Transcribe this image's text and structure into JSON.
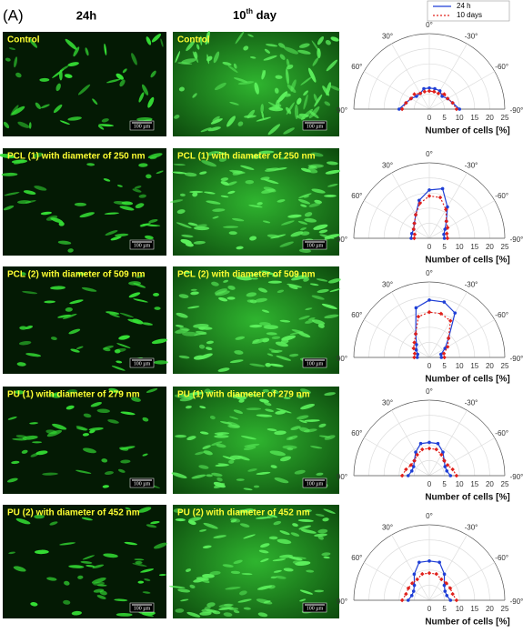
{
  "panel_label": "(A)",
  "column_headers": [
    "24h",
    {
      "main": "10",
      "sup": "th",
      "rest": " day"
    }
  ],
  "rows": [
    {
      "images": [
        {
          "label": "Control",
          "scale_bar": "100 µm"
        },
        {
          "label": "Control",
          "scale_bar": "100 µm"
        }
      ]
    },
    {
      "images": [
        {
          "label": "PCL (1) with diameter of 250 nm",
          "scale_bar": "100 µm"
        },
        {
          "label": "PCL (1) with diameter of 250 nm",
          "scale_bar": "100 µm"
        }
      ]
    },
    {
      "images": [
        {
          "label": "PCL (2) with diameter of 509 nm",
          "scale_bar": "100 µm"
        },
        {
          "label": "PCL (2) with diameter of 509 nm",
          "scale_bar": "100 µm"
        }
      ]
    },
    {
      "images": [
        {
          "label": "PU (1) with diameter of 279 nm",
          "scale_bar": "100 µm"
        },
        {
          "label": "PU (1) with diameter of 279 nm",
          "scale_bar": "100 µm"
        }
      ]
    },
    {
      "images": [
        {
          "label": "PU (2) with diameter of 452 nm",
          "scale_bar": "100 µm"
        },
        {
          "label": "PU (2) with diameter of 452 nm",
          "scale_bar": "100 µm"
        }
      ]
    }
  ],
  "chart_data": [
    {
      "type": "polar",
      "xlabel": "Number of cells [%]",
      "rlim": [
        0,
        25
      ],
      "rticks": [
        0,
        5,
        10,
        15,
        20,
        25
      ],
      "thetaticks": [
        {
          "value": 0,
          "label": "0°"
        },
        {
          "value": 30,
          "label": "30°"
        },
        {
          "value": 60,
          "label": "60°"
        },
        {
          "value": 90,
          "label": "90°"
        },
        {
          "value": -30,
          "label": "-30°"
        },
        {
          "value": -60,
          "label": "-60°"
        },
        {
          "value": -90,
          "label": "-90°"
        }
      ],
      "theta": [
        90,
        75,
        60,
        45,
        30,
        15,
        0,
        -15,
        -30,
        -45,
        -60,
        -75,
        -90
      ],
      "series": [
        {
          "name": "24 h",
          "color": "#1f3fd6",
          "values": [
            10,
            8,
            7,
            6,
            6,
            7,
            7,
            7,
            7,
            6,
            7,
            8,
            10
          ]
        },
        {
          "name": "10 days",
          "color": "#e0201b",
          "values": [
            9,
            8,
            7,
            7,
            6,
            6,
            6,
            6,
            6,
            7,
            7,
            8,
            9
          ]
        }
      ]
    },
    {
      "type": "polar",
      "xlabel": "Number of cells [%]",
      "rlim": [
        0,
        25
      ],
      "rticks": [
        0,
        5,
        10,
        15,
        20,
        25
      ],
      "thetaticks": [
        {
          "value": 0,
          "label": "0°"
        },
        {
          "value": 30,
          "label": "30°"
        },
        {
          "value": 60,
          "label": "60°"
        },
        {
          "value": 90,
          "label": "90°"
        },
        {
          "value": -30,
          "label": "-30°"
        },
        {
          "value": -60,
          "label": "-60°"
        },
        {
          "value": -90,
          "label": "-90°"
        }
      ],
      "theta": [
        90,
        75,
        60,
        45,
        30,
        15,
        0,
        -15,
        -30,
        -45,
        -60,
        -75,
        -90
      ],
      "series": [
        {
          "color": "#1f3fd6",
          "values": [
            6,
            6,
            6,
            7,
            9,
            13,
            16,
            17,
            12,
            8,
            6,
            5,
            5
          ]
        },
        {
          "color": "#e0201b",
          "values": [
            5,
            5,
            6,
            7,
            9,
            12,
            14,
            14,
            11,
            8,
            7,
            6,
            6
          ]
        }
      ]
    },
    {
      "type": "polar",
      "xlabel": "Number of cells [%]",
      "rlim": [
        0,
        25
      ],
      "rticks": [
        0,
        5,
        10,
        15,
        20,
        25
      ],
      "thetaticks": [
        {
          "value": 0,
          "label": "0°"
        },
        {
          "value": 30,
          "label": "30°"
        },
        {
          "value": 60,
          "label": "60°"
        },
        {
          "value": 90,
          "label": "90°"
        },
        {
          "value": -30,
          "label": "-30°"
        },
        {
          "value": -60,
          "label": "-60°"
        },
        {
          "value": -90,
          "label": "-90°"
        }
      ],
      "theta": [
        90,
        75,
        60,
        45,
        30,
        15,
        0,
        -15,
        -30,
        -45,
        -60,
        -75,
        -90
      ],
      "series": [
        {
          "color": "#1f3fd6",
          "values": [
            4,
            4,
            5,
            6,
            9,
            17,
            19,
            19,
            17,
            9,
            6,
            4,
            4
          ]
        },
        {
          "color": "#e0201b",
          "values": [
            5,
            5,
            6,
            7,
            9,
            14,
            15,
            15,
            14,
            9,
            7,
            5,
            5
          ]
        }
      ]
    },
    {
      "type": "polar",
      "xlabel": "Number of cells [%]",
      "rlim": [
        0,
        25
      ],
      "rticks": [
        0,
        5,
        10,
        15,
        20,
        25
      ],
      "thetaticks": [
        {
          "value": 0,
          "label": "0°"
        },
        {
          "value": 30,
          "label": "30°"
        },
        {
          "value": 60,
          "label": "60°"
        },
        {
          "value": 90,
          "label": "90°"
        },
        {
          "value": -30,
          "label": "-30°"
        },
        {
          "value": -60,
          "label": "-60°"
        },
        {
          "value": -90,
          "label": "-90°"
        }
      ],
      "theta": [
        90,
        75,
        60,
        45,
        30,
        15,
        0,
        -15,
        -30,
        -45,
        -60,
        -75,
        -90
      ],
      "series": [
        {
          "color": "#1f3fd6",
          "values": [
            7,
            6,
            6,
            7,
            9,
            11,
            11,
            11,
            9,
            7,
            6,
            6,
            7
          ]
        },
        {
          "color": "#e0201b",
          "values": [
            9,
            8,
            7,
            7,
            8,
            9,
            9,
            9,
            8,
            7,
            7,
            8,
            9
          ]
        }
      ]
    },
    {
      "type": "polar",
      "xlabel": "Number of cells [%]",
      "rlim": [
        0,
        25
      ],
      "rticks": [
        0,
        5,
        10,
        15,
        20,
        25
      ],
      "thetaticks": [
        {
          "value": 0,
          "label": "0°"
        },
        {
          "value": 30,
          "label": "30°"
        },
        {
          "value": 60,
          "label": "60°"
        },
        {
          "value": 90,
          "label": "90°"
        },
        {
          "value": -30,
          "label": "-30°"
        },
        {
          "value": -60,
          "label": "-60°"
        },
        {
          "value": -90,
          "label": "-90°"
        }
      ],
      "theta": [
        90,
        75,
        60,
        45,
        30,
        15,
        0,
        -15,
        -30,
        -45,
        -60,
        -75,
        -90
      ],
      "series": [
        {
          "color": "#1f3fd6",
          "values": [
            7,
            6,
            6,
            7,
            10,
            13,
            13,
            13,
            10,
            7,
            6,
            6,
            7
          ]
        },
        {
          "color": "#e0201b",
          "values": [
            9,
            8,
            8,
            8,
            8,
            9,
            9,
            9,
            8,
            8,
            8,
            8,
            9
          ]
        }
      ]
    }
  ]
}
